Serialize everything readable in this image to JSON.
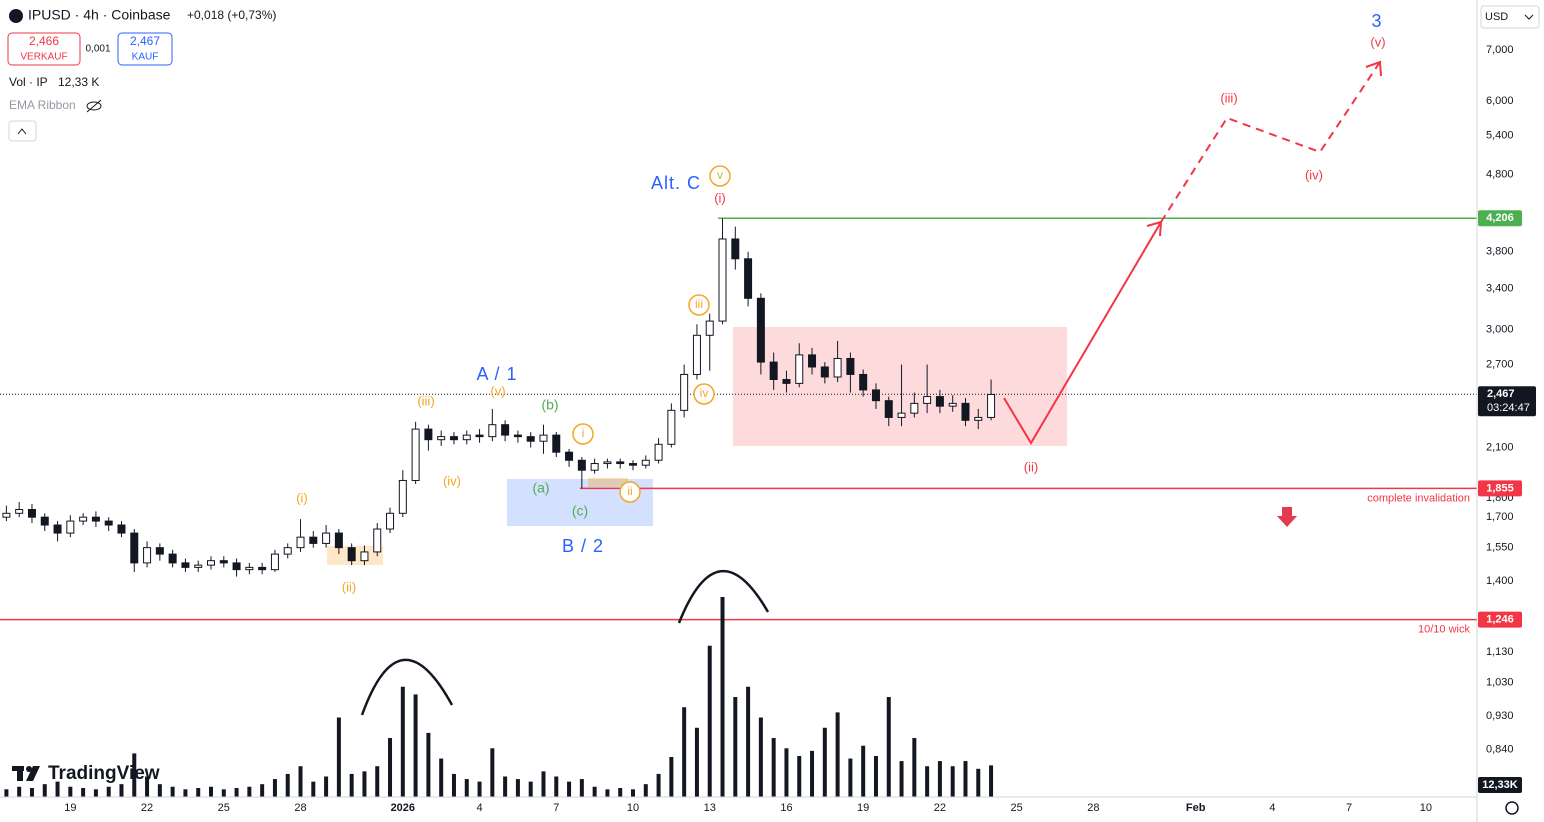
{
  "header": {
    "symbol": "IPUSD · 4h · Coinbase",
    "change": "+0,018 (+0,73%)",
    "sell_price": "2,466",
    "sell_label": "VERKAUF",
    "spread": "0,001",
    "buy_price": "2,467",
    "buy_label": "KAUF",
    "volume_indicator": "Vol · IP",
    "volume_value": "12,33 K",
    "ema_ribbon": "EMA Ribbon",
    "currency": "USD",
    "brand": "TradingView"
  },
  "chart_data": {
    "type": "candlestick",
    "log_scale": true,
    "grid": false,
    "ylim": [
      0.728,
      8.15
    ],
    "yticks": [
      {
        "value": 7,
        "label": "7,000"
      },
      {
        "value": 6,
        "label": "6,000"
      },
      {
        "value": 5.4,
        "label": "5,400"
      },
      {
        "value": 4.8,
        "label": "4,800"
      },
      {
        "value": 3.8,
        "label": "3,800"
      },
      {
        "value": 3.4,
        "label": "3,400"
      },
      {
        "value": 3,
        "label": "3,000"
      },
      {
        "value": 2.7,
        "label": "2,700"
      },
      {
        "value": 2.1,
        "label": "2,100"
      },
      {
        "value": 1.8,
        "label": "1,800"
      },
      {
        "value": 1.7,
        "label": "1,700"
      },
      {
        "value": 1.55,
        "label": "1,550"
      },
      {
        "value": 1.4,
        "label": "1,400"
      },
      {
        "value": 1.13,
        "label": "1,130"
      },
      {
        "value": 1.03,
        "label": "1,030"
      },
      {
        "value": 0.93,
        "label": "0,930"
      },
      {
        "value": 0.84,
        "label": "0,840"
      }
    ],
    "xlim": [
      "2025-12-16T06:00",
      "2026-02-12T00:00"
    ],
    "xticks": [
      {
        "value": "2025-12-19",
        "label": "19"
      },
      {
        "value": "2025-12-22",
        "label": "22"
      },
      {
        "value": "2025-12-25",
        "label": "25"
      },
      {
        "value": "2025-12-28",
        "label": "28"
      },
      {
        "value": "2026-01-01",
        "label": "2026"
      },
      {
        "value": "2026-01-04",
        "label": "4"
      },
      {
        "value": "2026-01-07",
        "label": "7"
      },
      {
        "value": "2026-01-10",
        "label": "10"
      },
      {
        "value": "2026-01-13",
        "label": "13"
      },
      {
        "value": "2026-01-16",
        "label": "16"
      },
      {
        "value": "2026-01-19",
        "label": "19"
      },
      {
        "value": "2026-01-22",
        "label": "22"
      },
      {
        "value": "2026-01-25",
        "label": "25"
      },
      {
        "value": "2026-01-28",
        "label": "28"
      },
      {
        "value": "2026-02-01",
        "label": "Feb"
      },
      {
        "value": "2026-02-04",
        "label": "4"
      },
      {
        "value": "2026-02-07",
        "label": "7"
      },
      {
        "value": "2026-02-10",
        "label": "10"
      }
    ],
    "x": [
      "2025-12-16T12:00",
      "2025-12-17T00:00",
      "2025-12-17T12:00",
      "2025-12-18T00:00",
      "2025-12-18T12:00",
      "2025-12-19T00:00",
      "2025-12-19T12:00",
      "2025-12-20T00:00",
      "2025-12-20T12:00",
      "2025-12-21T00:00",
      "2025-12-21T12:00",
      "2025-12-22T00:00",
      "2025-12-22T12:00",
      "2025-12-23T00:00",
      "2025-12-23T12:00",
      "2025-12-24T00:00",
      "2025-12-24T12:00",
      "2025-12-25T00:00",
      "2025-12-25T12:00",
      "2025-12-26T00:00",
      "2025-12-26T12:00",
      "2025-12-27T00:00",
      "2025-12-27T12:00",
      "2025-12-28T00:00",
      "2025-12-28T12:00",
      "2025-12-29T00:00",
      "2025-12-29T12:00",
      "2025-12-30T00:00",
      "2025-12-30T12:00",
      "2025-12-31T00:00",
      "2025-12-31T12:00",
      "2026-01-01T00:00",
      "2026-01-01T12:00",
      "2026-01-02T00:00",
      "2026-01-02T12:00",
      "2026-01-03T00:00",
      "2026-01-03T12:00",
      "2026-01-04T00:00",
      "2026-01-04T12:00",
      "2026-01-05T00:00",
      "2026-01-05T12:00",
      "2026-01-06T00:00",
      "2026-01-06T12:00",
      "2026-01-07T00:00",
      "2026-01-07T12:00",
      "2026-01-08T00:00",
      "2026-01-08T12:00",
      "2026-01-09T00:00",
      "2026-01-09T12:00",
      "2026-01-10T00:00",
      "2026-01-10T12:00",
      "2026-01-11T00:00",
      "2026-01-11T12:00",
      "2026-01-12T00:00",
      "2026-01-12T12:00",
      "2026-01-13T00:00",
      "2026-01-13T12:00",
      "2026-01-14T00:00",
      "2026-01-14T12:00",
      "2026-01-15T00:00",
      "2026-01-15T12:00",
      "2026-01-16T00:00",
      "2026-01-16T12:00",
      "2026-01-17T00:00",
      "2026-01-17T12:00",
      "2026-01-18T00:00",
      "2026-01-18T12:00",
      "2026-01-19T00:00",
      "2026-01-19T12:00",
      "2026-01-20T00:00",
      "2026-01-20T12:00",
      "2026-01-21T00:00",
      "2026-01-21T12:00",
      "2026-01-22T00:00",
      "2026-01-22T12:00",
      "2026-01-23T00:00",
      "2026-01-23T12:00",
      "2026-01-24T00:00"
    ],
    "open": [
      1.7,
      1.72,
      1.74,
      1.7,
      1.66,
      1.62,
      1.68,
      1.7,
      1.68,
      1.66,
      1.62,
      1.48,
      1.55,
      1.52,
      1.48,
      1.46,
      1.47,
      1.49,
      1.48,
      1.45,
      1.46,
      1.45,
      1.52,
      1.55,
      1.6,
      1.57,
      1.62,
      1.55,
      1.49,
      1.53,
      1.64,
      1.72,
      1.9,
      2.22,
      2.15,
      2.17,
      2.15,
      2.18,
      2.17,
      2.25,
      2.18,
      2.17,
      2.14,
      2.18,
      2.07,
      2.02,
      1.96,
      2.0,
      2.01,
      2.0,
      1.99,
      2.02,
      2.12,
      2.35,
      2.62,
      2.95,
      3.08,
      3.95,
      3.72,
      3.3,
      2.72,
      2.58,
      2.55,
      2.78,
      2.68,
      2.6,
      2.75,
      2.62,
      2.5,
      2.42,
      2.3,
      2.33,
      2.4,
      2.45,
      2.38,
      2.4,
      2.28,
      2.3
    ],
    "high": [
      1.76,
      1.78,
      1.77,
      1.72,
      1.68,
      1.71,
      1.72,
      1.73,
      1.7,
      1.68,
      1.64,
      1.58,
      1.57,
      1.54,
      1.5,
      1.49,
      1.51,
      1.51,
      1.5,
      1.48,
      1.48,
      1.54,
      1.57,
      1.69,
      1.63,
      1.66,
      1.64,
      1.57,
      1.56,
      1.67,
      1.75,
      1.96,
      2.27,
      2.25,
      2.21,
      2.2,
      2.21,
      2.22,
      2.36,
      2.28,
      2.21,
      2.2,
      2.25,
      2.2,
      2.09,
      2.04,
      2.03,
      2.03,
      2.03,
      2.02,
      2.05,
      2.16,
      2.4,
      2.7,
      3.05,
      3.15,
      4.206,
      4.1,
      3.8,
      3.35,
      2.8,
      2.65,
      2.88,
      2.84,
      2.72,
      2.9,
      2.8,
      2.66,
      2.55,
      2.45,
      2.7,
      2.48,
      2.7,
      2.5,
      2.46,
      2.44,
      2.36,
      2.58
    ],
    "low": [
      1.68,
      1.7,
      1.67,
      1.63,
      1.58,
      1.6,
      1.66,
      1.65,
      1.63,
      1.6,
      1.44,
      1.46,
      1.49,
      1.46,
      1.44,
      1.44,
      1.45,
      1.46,
      1.42,
      1.43,
      1.43,
      1.44,
      1.5,
      1.53,
      1.55,
      1.55,
      1.52,
      1.47,
      1.47,
      1.51,
      1.62,
      1.7,
      1.88,
      2.08,
      2.11,
      2.12,
      2.12,
      2.13,
      2.14,
      2.14,
      2.13,
      2.1,
      2.06,
      2.04,
      1.98,
      1.855,
      1.94,
      1.97,
      1.97,
      1.96,
      1.97,
      2.0,
      2.1,
      2.3,
      2.58,
      2.65,
      3.05,
      3.6,
      3.22,
      2.62,
      2.5,
      2.48,
      2.52,
      2.62,
      2.55,
      2.56,
      2.48,
      2.45,
      2.36,
      2.24,
      2.24,
      2.3,
      2.33,
      2.33,
      2.34,
      2.24,
      2.22,
      2.28
    ],
    "close": [
      1.72,
      1.74,
      1.7,
      1.66,
      1.62,
      1.68,
      1.7,
      1.68,
      1.66,
      1.62,
      1.48,
      1.55,
      1.52,
      1.48,
      1.46,
      1.47,
      1.49,
      1.48,
      1.45,
      1.46,
      1.45,
      1.52,
      1.55,
      1.6,
      1.57,
      1.62,
      1.55,
      1.49,
      1.53,
      1.64,
      1.72,
      1.9,
      2.22,
      2.15,
      2.17,
      2.15,
      2.18,
      2.17,
      2.25,
      2.18,
      2.17,
      2.14,
      2.18,
      2.07,
      2.02,
      1.96,
      2.0,
      2.01,
      2.0,
      1.99,
      2.02,
      2.12,
      2.35,
      2.62,
      2.95,
      3.08,
      3.95,
      3.72,
      3.3,
      2.72,
      2.58,
      2.55,
      2.78,
      2.68,
      2.6,
      2.75,
      2.62,
      2.5,
      2.42,
      2.3,
      2.33,
      2.4,
      2.45,
      2.38,
      2.4,
      2.28,
      2.3,
      2.466
    ],
    "volume": [
      3000,
      4000,
      3500,
      5000,
      6000,
      4000,
      3500,
      3000,
      4000,
      5000,
      17000,
      8000,
      5000,
      4000,
      3000,
      3500,
      4000,
      3000,
      3500,
      4000,
      5000,
      7000,
      9000,
      12000,
      6000,
      8000,
      31000,
      9000,
      10000,
      12000,
      23000,
      43000,
      40000,
      25000,
      15000,
      9000,
      7000,
      6000,
      19000,
      8000,
      7000,
      6000,
      10000,
      8000,
      6000,
      7000,
      4000,
      3000,
      3500,
      3000,
      5000,
      9000,
      15600,
      35000,
      27000,
      59000,
      78000,
      39000,
      43000,
      31000,
      23000,
      19000,
      16000,
      18000,
      27000,
      33000,
      15000,
      20000,
      16000,
      39000,
      14000,
      23000,
      12000,
      14000,
      12000,
      14000,
      11000,
      12330
    ],
    "volume_label": "12,33K",
    "up_color": "#ffffff",
    "down_color": "#131722",
    "volume_color": "#131722",
    "last_price": {
      "value": 2.467,
      "label": "2,467",
      "countdown": "03:24:47"
    },
    "levels": [
      {
        "value": 4.206,
        "label": "4,206",
        "color": "#4caf50"
      },
      {
        "value": 1.855,
        "label": "1,855",
        "color": "#f23645",
        "note": "complete invalidation"
      },
      {
        "value": 1.246,
        "label": "1,246",
        "color": "#f23645",
        "note": "10/10 wick"
      }
    ],
    "annotations": [
      {
        "text": "Alt. C",
        "color": "#2962ff"
      },
      {
        "text": "A / 1",
        "color": "#2962ff"
      },
      {
        "text": "B / 2",
        "color": "#2962ff"
      },
      {
        "text": "3",
        "color": "#2962ff"
      },
      {
        "text": "(iii)",
        "color": "#f5a623"
      },
      {
        "text": "(v)",
        "color": "#f5a623"
      },
      {
        "text": "(iv)",
        "color": "#f5a623"
      },
      {
        "text": "(i)",
        "color": "#f5a623"
      },
      {
        "text": "(ii)",
        "color": "#f5a623"
      },
      {
        "text": "i",
        "color": "#f5a623",
        "circled": true
      },
      {
        "text": "ii",
        "color": "#f5a623",
        "circled": true
      },
      {
        "text": "iii",
        "color": "#f5a623",
        "circled": true
      },
      {
        "text": "iv",
        "color": "#f5a623",
        "circled": true
      },
      {
        "text": "v",
        "color": "#f5a623",
        "circled": true
      },
      {
        "text": "(b)",
        "color": "#4caf50"
      },
      {
        "text": "(a)",
        "color": "#4caf50"
      },
      {
        "text": "(c)",
        "color": "#4caf50"
      },
      {
        "text": "(i)",
        "color": "#f23645"
      },
      {
        "text": "(ii)",
        "color": "#f23645"
      },
      {
        "text": "(iii)",
        "color": "#f23645"
      },
      {
        "text": "(iv)",
        "color": "#f23645"
      },
      {
        "text": "(v)",
        "color": "#f23645"
      }
    ]
  }
}
